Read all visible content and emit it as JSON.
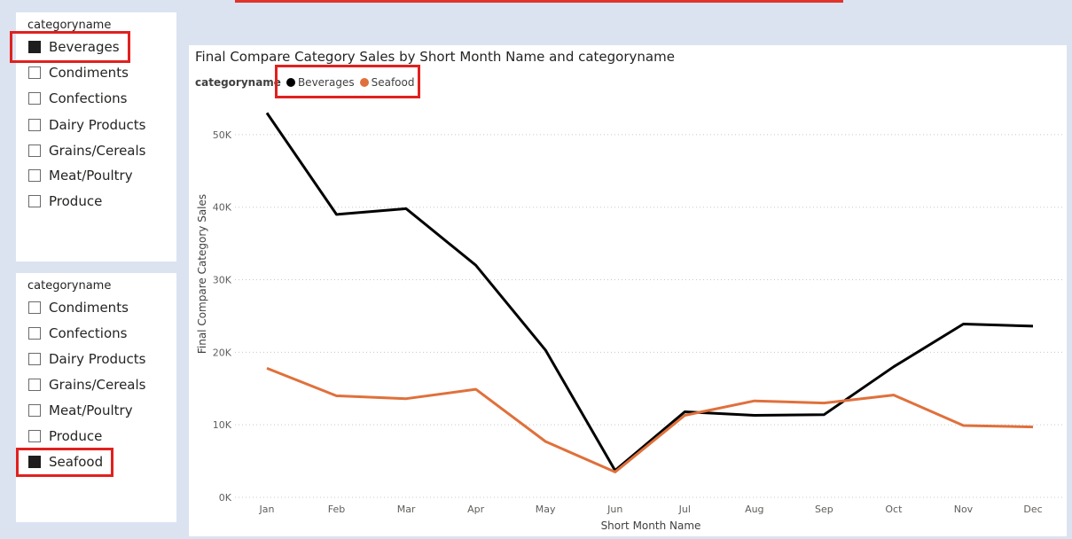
{
  "slicer_top": {
    "title": "categoryname",
    "items": [
      {
        "label": "Beverages",
        "checked": true
      },
      {
        "label": "Condiments",
        "checked": false
      },
      {
        "label": "Confections",
        "checked": false
      },
      {
        "label": "Dairy Products",
        "checked": false
      },
      {
        "label": "Grains/Cereals",
        "checked": false
      },
      {
        "label": "Meat/Poultry",
        "checked": false
      },
      {
        "label": "Produce",
        "checked": false
      }
    ]
  },
  "slicer_bottom": {
    "title": "categoryname",
    "items": [
      {
        "label": "Condiments",
        "checked": false
      },
      {
        "label": "Confections",
        "checked": false
      },
      {
        "label": "Dairy Products",
        "checked": false
      },
      {
        "label": "Grains/Cereals",
        "checked": false
      },
      {
        "label": "Meat/Poultry",
        "checked": false
      },
      {
        "label": "Produce",
        "checked": false
      },
      {
        "label": "Seafood",
        "checked": true
      }
    ]
  },
  "colors": {
    "highlight": "#e0211f",
    "beverages": "#000000",
    "seafood": "#e0703b",
    "background": "#dbe3f1"
  },
  "chart_data": {
    "type": "line",
    "title": "Final Compare Category Sales by Short Month Name and categoryname",
    "legend_title": "categoryname",
    "legend_position": "top-left",
    "xlabel": "Short Month Name",
    "ylabel": "Final Compare Category Sales",
    "categories": [
      "Jan",
      "Feb",
      "Mar",
      "Apr",
      "May",
      "Jun",
      "Jul",
      "Aug",
      "Sep",
      "Oct",
      "Nov",
      "Dec"
    ],
    "yticks": [
      "0K",
      "10K",
      "20K",
      "30K",
      "40K",
      "50K"
    ],
    "ylim": [
      0,
      55000
    ],
    "grid": true,
    "series": [
      {
        "name": "Beverages",
        "color": "#000000",
        "values": [
          53000,
          39000,
          39800,
          32000,
          20300,
          3700,
          11800,
          11300,
          11400,
          18000,
          23900,
          23600
        ]
      },
      {
        "name": "Seafood",
        "color": "#e0703b",
        "values": [
          17800,
          14000,
          13600,
          14900,
          7700,
          3500,
          11300,
          13300,
          13000,
          14100,
          9900,
          9700
        ]
      }
    ]
  }
}
